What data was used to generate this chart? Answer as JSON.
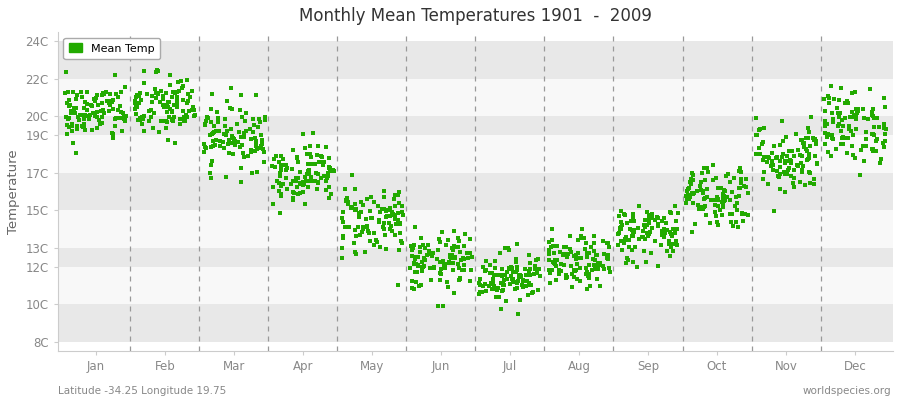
{
  "title": "Monthly Mean Temperatures 1901  -  2009",
  "ylabel": "Temperature",
  "ytick_labels": [
    "8C",
    "10C",
    "12C",
    "13C",
    "15C",
    "17C",
    "19C",
    "20C",
    "22C",
    "24C"
  ],
  "ytick_values": [
    8,
    10,
    12,
    13,
    15,
    17,
    19,
    20,
    22,
    24
  ],
  "ylim": [
    7.5,
    24.5
  ],
  "month_labels": [
    "Jan",
    "Feb",
    "Mar",
    "Apr",
    "May",
    "Jun",
    "Jul",
    "Aug",
    "Sep",
    "Oct",
    "Nov",
    "Dec"
  ],
  "dot_color": "#22aa00",
  "fig_bg": "#ffffff",
  "plot_bg": "#ffffff",
  "legend_label": "Mean Temp",
  "subtitle_left": "Latitude -34.25 Longitude 19.75",
  "subtitle_right": "worldspecies.org",
  "n_years": 109,
  "seed": 42,
  "monthly_means": [
    20.2,
    20.5,
    19.0,
    17.0,
    14.5,
    12.2,
    11.5,
    12.2,
    13.8,
    15.8,
    17.8,
    19.5
  ],
  "monthly_stds": [
    0.8,
    0.9,
    0.9,
    0.8,
    1.0,
    0.8,
    0.7,
    0.7,
    0.8,
    0.9,
    1.0,
    1.0
  ],
  "band_colors": [
    "#e8e8e8",
    "#f8f8f8"
  ],
  "vline_color": "#999999",
  "spine_color": "#cccccc",
  "tick_color": "#888888",
  "title_color": "#333333",
  "label_color": "#666666"
}
